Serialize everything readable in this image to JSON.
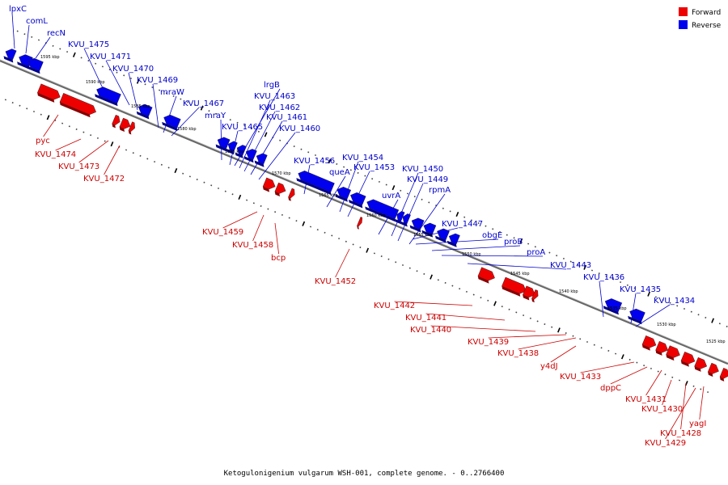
{
  "legend": {
    "forward_label": "Forward",
    "reverse_label": "Reverse",
    "forward_color": "#ee0000",
    "reverse_color": "#0000ee"
  },
  "caption": "Ketogulonigenium vulgarum WSH-001, complete genome. - 0..2766400",
  "genome_map": {
    "backbone_color": "#666666",
    "ticks": [
      "1595 kbp",
      "1590 kbp",
      "1585 kbp",
      "1580 kbp",
      "1575 kbp",
      "1570 kbp",
      "1565 kbp",
      "1560 kbp",
      "1555 kbp",
      "1550 kbp",
      "1545 kbp",
      "1540 kbp",
      "1535 kbp",
      "1530 kbp",
      "1525 kbp"
    ],
    "reverse_genes": [
      "lpxC",
      "comL",
      "recN",
      "KVU_1475",
      "KVU_1471",
      "KVU_1470",
      "KVU_1469",
      "mraW",
      "KVU_1467",
      "mraY",
      "lrgB",
      "KVU_1463",
      "KVU_1462",
      "KVU_1461",
      "KVU_1465",
      "KVU_1460",
      "KVU_1456",
      "queA",
      "KVU_1454",
      "KVU_1453",
      "uvrA",
      "KVU_1450",
      "KVU_1449",
      "rpmA",
      "KVU_1447",
      "obgE",
      "proB",
      "proA",
      "KVU_1443",
      "KVU_1436",
      "KVU_1435",
      "KVU_1434"
    ],
    "forward_genes": [
      "pyc",
      "KVU_1474",
      "KVU_1473",
      "KVU_1472",
      "KVU_1459",
      "KVU_1458",
      "bcp",
      "KVU_1452",
      "KVU_1442",
      "KVU_1441",
      "KVU_1440",
      "KVU_1439",
      "KVU_1438",
      "y4dJ",
      "KVU_1433",
      "dppC",
      "KVU_1431",
      "KVU_1430",
      "KVU_1428",
      "yagI",
      "KVU_1429"
    ]
  }
}
